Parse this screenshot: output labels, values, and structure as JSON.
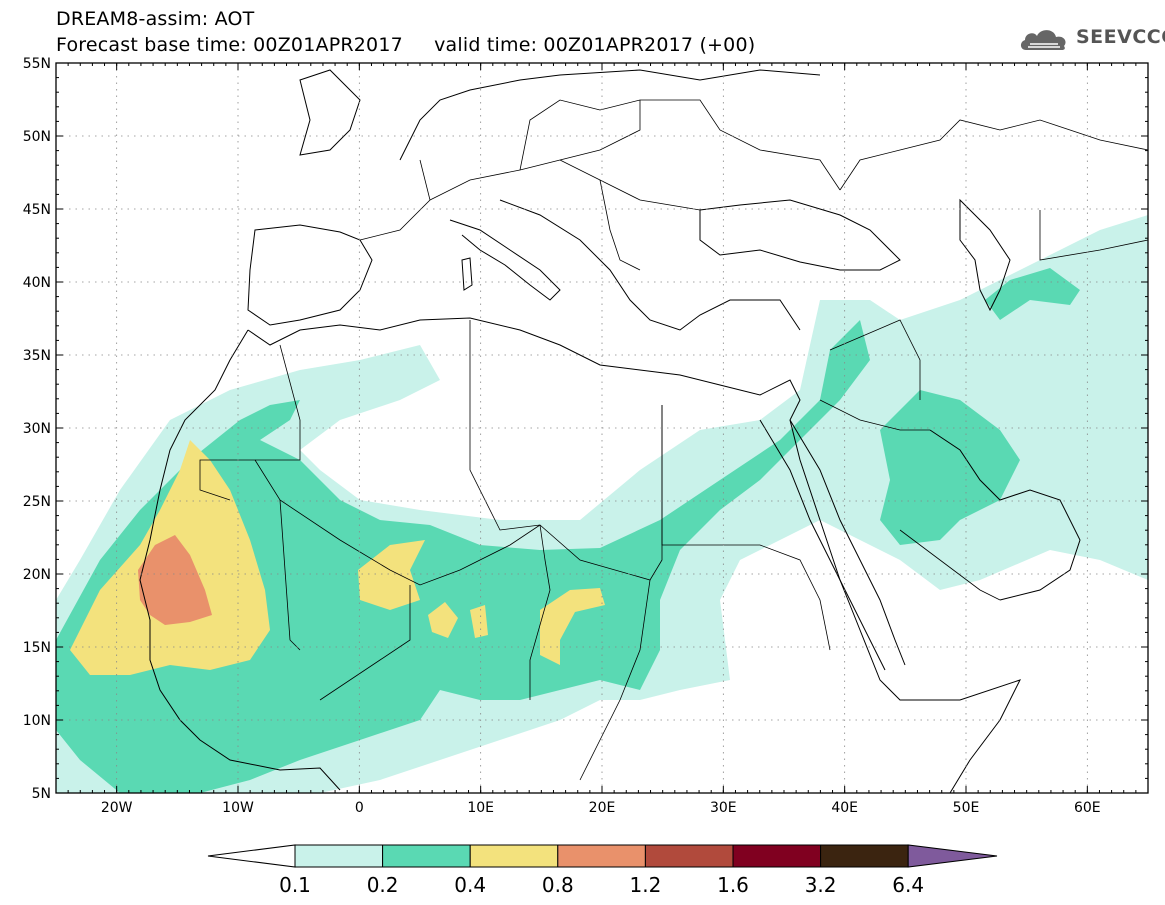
{
  "header": {
    "line1": "DREAM8-assim: AOT",
    "line2": "Forecast base time: 00Z01APR2017     valid time: 00Z01APR2017 (+00)"
  },
  "logo": {
    "text": "SEEVCCC",
    "icon": "cloud-icon"
  },
  "map": {
    "projection": "lat-lon",
    "lon_range": [
      -25,
      65
    ],
    "lat_range": [
      5,
      55
    ],
    "lat_ticks": [
      "55N",
      "50N",
      "45N",
      "40N",
      "35N",
      "30N",
      "25N",
      "20N",
      "15N",
      "10N",
      "5N"
    ],
    "lon_ticks": [
      "20W",
      "10W",
      "0",
      "10E",
      "20E",
      "30E",
      "40E",
      "50E",
      "60E"
    ],
    "gridlines": true,
    "gridline_style": "dotted"
  },
  "colorbar": {
    "labels": [
      "0.1",
      "0.2",
      "0.4",
      "0.8",
      "1.2",
      "1.6",
      "3.2",
      "6.4"
    ],
    "colors": [
      "#c9f2ea",
      "#5ad9b3",
      "#f3e27d",
      "#e9916b",
      "#b14a3c",
      "#800020",
      "#3b2410",
      "#7f5a9c"
    ],
    "under_color": "#ffffff"
  }
}
